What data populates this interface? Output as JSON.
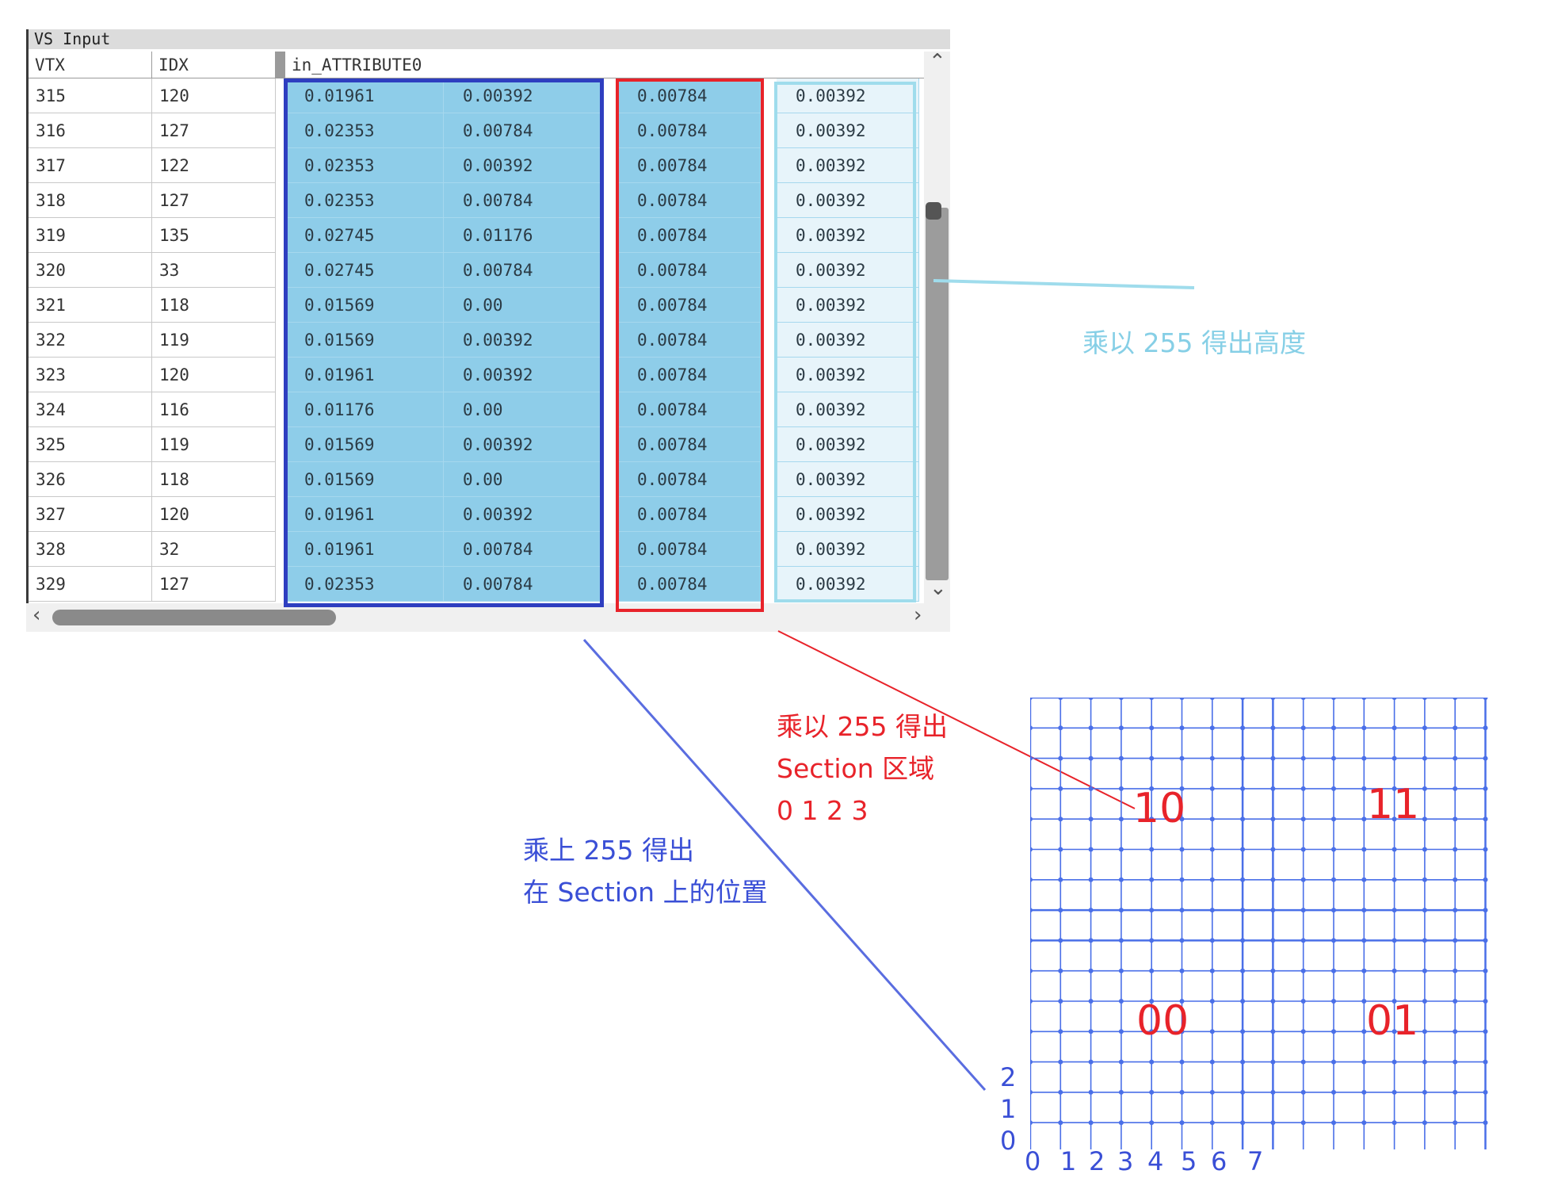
{
  "panel": {
    "title": "VS Input",
    "headers": {
      "vtx": "VTX",
      "idx": "IDX",
      "attr": "in_ATTRIBUTE0"
    },
    "rows": [
      {
        "vtx": "315",
        "idx": "120",
        "v": [
          "0.01961",
          "0.00392",
          "0.00784",
          "0.00392"
        ]
      },
      {
        "vtx": "316",
        "idx": "127",
        "v": [
          "0.02353",
          "0.00784",
          "0.00784",
          "0.00392"
        ]
      },
      {
        "vtx": "317",
        "idx": "122",
        "v": [
          "0.02353",
          "0.00392",
          "0.00784",
          "0.00392"
        ]
      },
      {
        "vtx": "318",
        "idx": "127",
        "v": [
          "0.02353",
          "0.00784",
          "0.00784",
          "0.00392"
        ]
      },
      {
        "vtx": "319",
        "idx": "135",
        "v": [
          "0.02745",
          "0.01176",
          "0.00784",
          "0.00392"
        ]
      },
      {
        "vtx": "320",
        "idx": "33",
        "v": [
          "0.02745",
          "0.00784",
          "0.00784",
          "0.00392"
        ]
      },
      {
        "vtx": "321",
        "idx": "118",
        "v": [
          "0.01569",
          "0.00",
          "0.00784",
          "0.00392"
        ]
      },
      {
        "vtx": "322",
        "idx": "119",
        "v": [
          "0.01569",
          "0.00392",
          "0.00784",
          "0.00392"
        ]
      },
      {
        "vtx": "323",
        "idx": "120",
        "v": [
          "0.01961",
          "0.00392",
          "0.00784",
          "0.00392"
        ]
      },
      {
        "vtx": "324",
        "idx": "116",
        "v": [
          "0.01176",
          "0.00",
          "0.00784",
          "0.00392"
        ]
      },
      {
        "vtx": "325",
        "idx": "119",
        "v": [
          "0.01569",
          "0.00392",
          "0.00784",
          "0.00392"
        ]
      },
      {
        "vtx": "326",
        "idx": "118",
        "v": [
          "0.01569",
          "0.00",
          "0.00784",
          "0.00392"
        ]
      },
      {
        "vtx": "327",
        "idx": "120",
        "v": [
          "0.01961",
          "0.00392",
          "0.00784",
          "0.00392"
        ]
      },
      {
        "vtx": "328",
        "idx": "32",
        "v": [
          "0.01961",
          "0.00784",
          "0.00784",
          "0.00392"
        ]
      },
      {
        "vtx": "329",
        "idx": "127",
        "v": [
          "0.02353",
          "0.00784",
          "0.00784",
          "0.00392"
        ]
      }
    ],
    "icons": {
      "scroll_up": "chevron-up-icon",
      "scroll_down": "chevron-down-icon",
      "scroll_left": "chevron-left-icon",
      "scroll_right": "chevron-right-icon"
    }
  },
  "annotations": {
    "height_note": "乘以 255 得出高度",
    "section_note_1": "乘以 255 得出",
    "section_note_2": "Section 区域",
    "section_note_3": "0 1 2 3",
    "position_note_1": "乘上 255 得出",
    "position_note_2": "在 Section 上的位置"
  },
  "grid": {
    "section_labels": [
      "10",
      "11",
      "00",
      "01"
    ],
    "x_ticks": [
      "0",
      "1",
      "2",
      "3",
      "4",
      "5",
      "6",
      "7"
    ],
    "y_ticks": [
      "2",
      "1",
      "0"
    ]
  },
  "colors": {
    "blue_highlight": "#2e3ec0",
    "red_highlight": "#e8232a",
    "cyan_highlight": "#9fdcec",
    "cell_blue": "#8ecde9",
    "grid_blue": "#4a6fe8",
    "height_text": "#86cfe6",
    "position_text": "#3a4fd6"
  }
}
